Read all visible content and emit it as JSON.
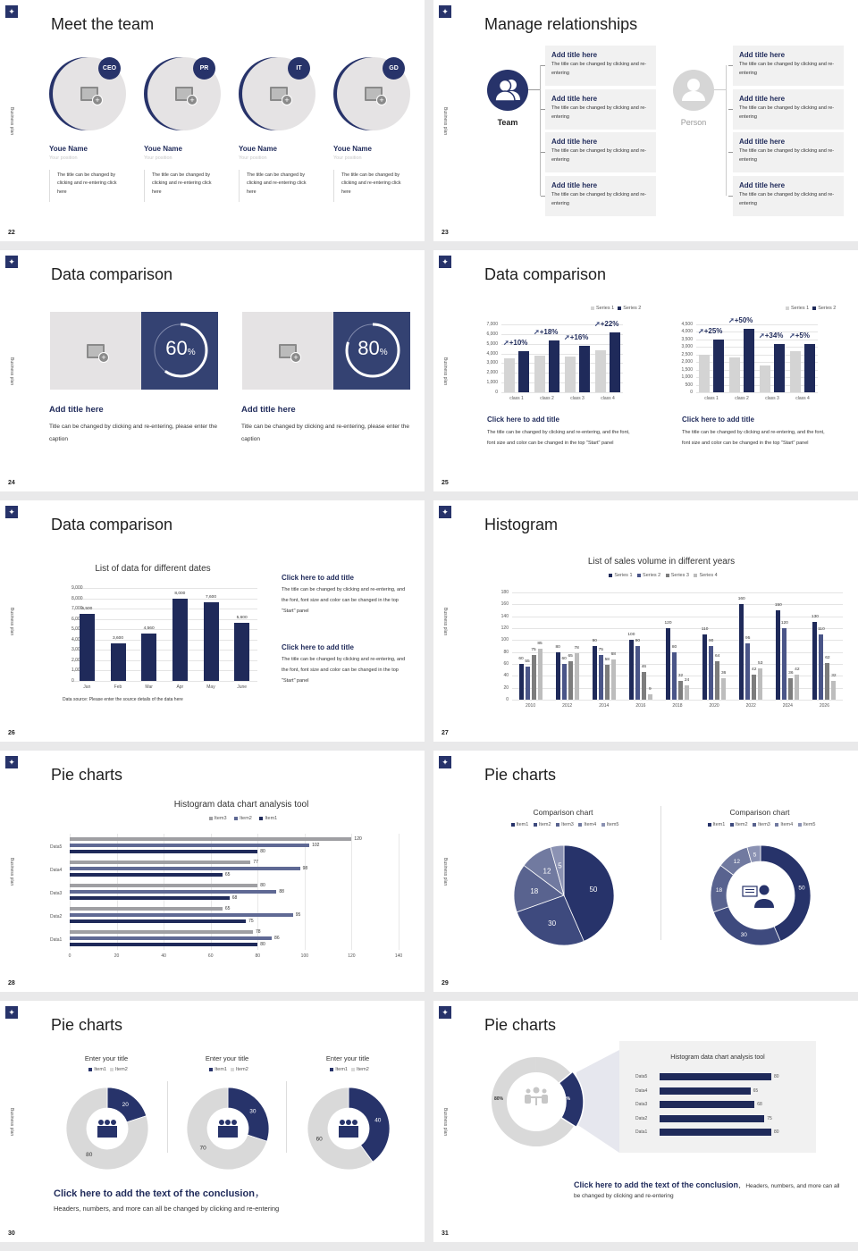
{
  "common": {
    "side_label": "Business plan",
    "logo_icon": "compass-logo-icon"
  },
  "colors": {
    "navy": "#27336a",
    "navy_dark": "#1f2a5a",
    "series2": "#4a5588",
    "series3": "#7d7d7d",
    "series4": "#bdbdbd",
    "light_gray": "#e5e3e4",
    "panel": "#f1f1f1"
  },
  "slides": [
    {
      "page": "22",
      "title": "Meet the team",
      "members": [
        {
          "badge": "CEO",
          "name": "Youe Name",
          "position": "Your position",
          "desc": "The title can be changed by clicking and re-entering click here"
        },
        {
          "badge": "PR",
          "name": "Youe Name",
          "position": "Your position",
          "desc": "The title can be changed by clicking and re-entering click here"
        },
        {
          "badge": "IT",
          "name": "Youe Name",
          "position": "Your position",
          "desc": "The title can be changed by clicking and re-entering click here"
        },
        {
          "badge": "GD",
          "name": "Youe Name",
          "position": "Your position",
          "desc": "The title can be changed by clicking and re-entering click here"
        }
      ]
    },
    {
      "page": "23",
      "title": "Manage relationships",
      "left_node": {
        "label": "Team",
        "icon": "team-icon"
      },
      "right_node": {
        "label": "Person",
        "icon": "person-icon"
      },
      "items": [
        {
          "title": "Add title here",
          "desc": "The title can be changed by clicking and re-entering"
        },
        {
          "title": "Add title here",
          "desc": "The title can be changed by clicking and re-entering"
        },
        {
          "title": "Add title here",
          "desc": "The title can be changed by clicking and re-entering"
        },
        {
          "title": "Add title here",
          "desc": "The title can be changed by clicking and re-entering"
        }
      ]
    },
    {
      "page": "24",
      "title": "Data comparison",
      "cards": [
        {
          "percent": "60",
          "unit": "%",
          "title": "Add title here",
          "desc": "Title can be changed by clicking and re-entering, please enter the caption"
        },
        {
          "percent": "80",
          "unit": "%",
          "title": "Add title here",
          "desc": "Title can be changed by clicking and re-entering, please enter the caption"
        }
      ]
    },
    {
      "page": "25",
      "title": "Data comparison",
      "panels": [
        {
          "title": "Click here to add title",
          "desc": "The title can be changed by clicking and re-entering, and the font, font size and color can be changed in the top \"Start\" panel"
        },
        {
          "title": "Click here to add title",
          "desc": "The title can be changed by clicking and re-entering, and the font, font size and color can be changed in the top \"Start\" panel"
        }
      ]
    },
    {
      "page": "26",
      "title": "Data comparison",
      "chart_title": "List of data for different dates",
      "source": "Data source: Please enter the source details of the data here",
      "notes": [
        {
          "title": "Click here to add title",
          "desc": "The title can be changed by clicking and re-entering, and the font, font size and color can be changed in the top \"Start\" panel"
        },
        {
          "title": "Click here to add title",
          "desc": "The title can be changed by clicking and re-entering, and the font, font size and color can be changed in the top \"Start\" panel"
        }
      ]
    },
    {
      "page": "27",
      "title": "Histogram",
      "chart_title": "List of sales volume in different years"
    },
    {
      "page": "28",
      "title": "Pie charts",
      "chart_title": "Histogram data chart analysis tool"
    },
    {
      "page": "29",
      "title": "Pie charts",
      "chart_titles": [
        "Comparison chart",
        "Comparison chart"
      ]
    },
    {
      "page": "30",
      "title": "Pie charts",
      "donut_titles": [
        "Enter your title",
        "Enter your title",
        "Enter your title"
      ],
      "conclusion": "Click here to add the text of the conclusion",
      "conclusion_sep": "，",
      "conclusion_sub": "Headers, numbers, and more can all be changed by clicking and re-entering"
    },
    {
      "page": "31",
      "title": "Pie charts",
      "chart_title": "Histogram data chart analysis tool",
      "donut_labels": [
        "80%",
        "20%"
      ],
      "conclusion": "Click here to add the text of the conclusion",
      "conclusion_sub": "， Headers, numbers, and more can all be changed by clicking and re-entering"
    }
  ],
  "chart_data": [
    {
      "type": "bar",
      "title": "",
      "legend": [
        "Series 1",
        "Series 2"
      ],
      "categories": [
        "class 1",
        "class 2",
        "class 3",
        "class 4"
      ],
      "series": [
        {
          "name": "Series 1",
          "values": [
            3500,
            3800,
            3700,
            4300
          ]
        },
        {
          "name": "Series 2",
          "values": [
            4200,
            5300,
            4800,
            6200
          ]
        }
      ],
      "annotations": [
        "+10%",
        "+18%",
        "+16%",
        "+22%"
      ],
      "yticks": [
        "0",
        "1,000",
        "2,000",
        "3,000",
        "4,000",
        "5,000",
        "6,000",
        "7,000"
      ],
      "ylim": [
        0,
        7000
      ]
    },
    {
      "type": "bar",
      "title": "",
      "legend": [
        "Series 1",
        "Series 2"
      ],
      "categories": [
        "class 1",
        "class 2",
        "class 3",
        "class 4"
      ],
      "series": [
        {
          "name": "Series 1",
          "values": [
            2500,
            2300,
            1800,
            2700
          ]
        },
        {
          "name": "Series 2",
          "values": [
            3500,
            4200,
            3200,
            3200
          ]
        }
      ],
      "annotations": [
        "+25%",
        "+50%",
        "+34%",
        "+5%"
      ],
      "yticks": [
        "0",
        "500",
        "1,000",
        "1,500",
        "2,000",
        "2,500",
        "3,000",
        "3,500",
        "4,000",
        "4,500"
      ],
      "ylim": [
        0,
        4500
      ]
    },
    {
      "type": "bar",
      "title": "List of data for different dates",
      "categories": [
        "Jan",
        "Feb",
        "Mar",
        "Apr",
        "May",
        "June"
      ],
      "values": [
        6500,
        3600,
        4560,
        8000,
        7600,
        5600
      ],
      "labels": [
        "6,500",
        "3,600",
        "4,560",
        "8,000",
        "7,600",
        "5,600"
      ],
      "yticks": [
        "0",
        "1,000",
        "2,000",
        "3,000",
        "4,000",
        "5,000",
        "6,000",
        "7,000",
        "8,000",
        "9,000"
      ],
      "ylim": [
        0,
        9000
      ]
    },
    {
      "type": "bar",
      "title": "List of sales volume in different years",
      "categories": [
        "2010",
        "2012",
        "2014",
        "2016",
        "2018",
        "2020",
        "2022",
        "2024",
        "2026"
      ],
      "series": [
        {
          "name": "Series 1",
          "values": [
            60,
            80,
            90,
            100,
            120,
            110,
            160,
            150,
            130
          ]
        },
        {
          "name": "Series 2",
          "values": [
            55,
            60,
            75,
            90,
            80,
            90,
            95,
            120,
            110
          ]
        },
        {
          "name": "Series 3",
          "values": [
            75,
            65,
            58,
            46,
            32,
            64,
            42,
            36,
            62
          ]
        },
        {
          "name": "Series 4",
          "values": [
            85,
            78,
            68,
            9,
            24,
            36,
            53,
            42,
            32
          ]
        }
      ],
      "yticks": [
        "0",
        "20",
        "40",
        "60",
        "80",
        "100",
        "120",
        "140",
        "160",
        "180"
      ],
      "ylim": [
        0,
        180
      ]
    },
    {
      "type": "bar",
      "orientation": "horizontal",
      "title": "Histogram data chart analysis tool",
      "legend": [
        "Item3",
        "Item2",
        "Item1"
      ],
      "categories": [
        "Data1",
        "Data2",
        "Data3",
        "Data4",
        "Data5"
      ],
      "series": [
        {
          "name": "Item3",
          "values": [
            78,
            65,
            80,
            77,
            120
          ]
        },
        {
          "name": "Item2",
          "values": [
            86,
            95,
            88,
            98,
            102
          ]
        },
        {
          "name": "Item1",
          "values": [
            80,
            75,
            68,
            65,
            80
          ]
        }
      ],
      "xticks": [
        "0",
        "20",
        "40",
        "60",
        "80",
        "100",
        "120",
        "140"
      ],
      "xlim": [
        0,
        140
      ]
    },
    {
      "type": "pie",
      "title": "Comparison chart",
      "legend": [
        "Item1",
        "Item2",
        "Item3",
        "Item4",
        "Item5"
      ],
      "values": [
        50,
        30,
        18,
        12,
        5
      ]
    },
    {
      "type": "pie",
      "donut": true,
      "title": "Comparison chart",
      "legend": [
        "Item1",
        "Item2",
        "Item3",
        "Item4",
        "Item5"
      ],
      "values": [
        50,
        30,
        18,
        12,
        5
      ]
    },
    {
      "type": "pie",
      "donut": true,
      "title": "Enter your title",
      "legend": [
        "Item1",
        "Item2"
      ],
      "values": [
        20,
        80
      ]
    },
    {
      "type": "pie",
      "donut": true,
      "title": "Enter your title",
      "legend": [
        "Item1",
        "Item2"
      ],
      "values": [
        30,
        70
      ]
    },
    {
      "type": "pie",
      "donut": true,
      "title": "Enter your title",
      "legend": [
        "Item1",
        "Item2"
      ],
      "values": [
        40,
        60
      ]
    },
    {
      "type": "pie",
      "donut": true,
      "title": "",
      "values": [
        20,
        80
      ],
      "labels": [
        "20%",
        "80%"
      ]
    },
    {
      "type": "bar",
      "orientation": "horizontal",
      "title": "Histogram data chart analysis tool",
      "categories": [
        "Data1",
        "Data2",
        "Data3",
        "Data4",
        "Data5"
      ],
      "values": [
        80,
        75,
        68,
        65,
        80
      ]
    }
  ]
}
